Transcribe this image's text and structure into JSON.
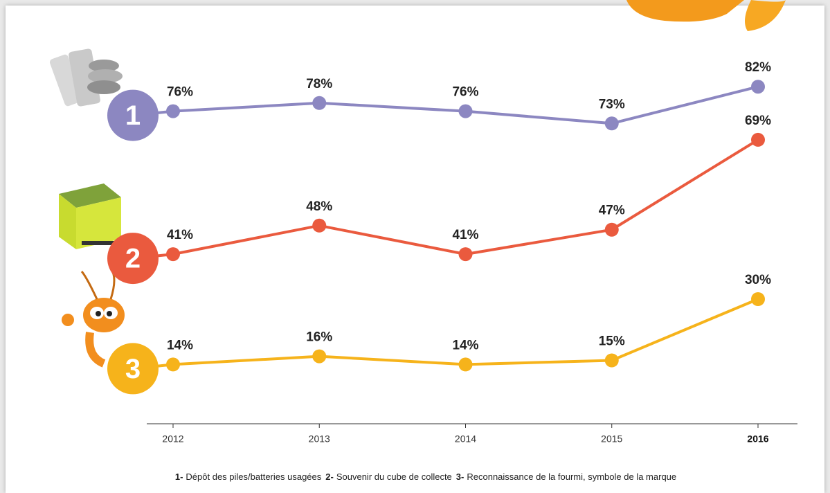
{
  "chart_data": {
    "type": "line",
    "categories": [
      "2012",
      "2013",
      "2014",
      "2015",
      "2016"
    ],
    "ylim": [
      0,
      100
    ],
    "series": [
      {
        "name": "Dépôt des piles/batteries usagées",
        "key": "1-",
        "badge": "1",
        "color": "#8c87c1",
        "values": [
          76,
          78,
          76,
          73,
          82
        ],
        "value_labels": [
          "76%",
          "78%",
          "76%",
          "73%",
          "82%"
        ]
      },
      {
        "name": "Souvenir du cube de collecte",
        "key": "2-",
        "badge": "2",
        "color": "#ea5a3e",
        "values": [
          41,
          48,
          41,
          47,
          69
        ],
        "value_labels": [
          "41%",
          "48%",
          "41%",
          "47%",
          "69%"
        ]
      },
      {
        "name": "Reconnaissance de la fourmi, symbole de la marque",
        "key": "3-",
        "badge": "3",
        "color": "#f6b31b",
        "values": [
          14,
          16,
          14,
          15,
          30
        ],
        "value_labels": [
          "14%",
          "16%",
          "14%",
          "15%",
          "30%"
        ]
      }
    ]
  }
}
